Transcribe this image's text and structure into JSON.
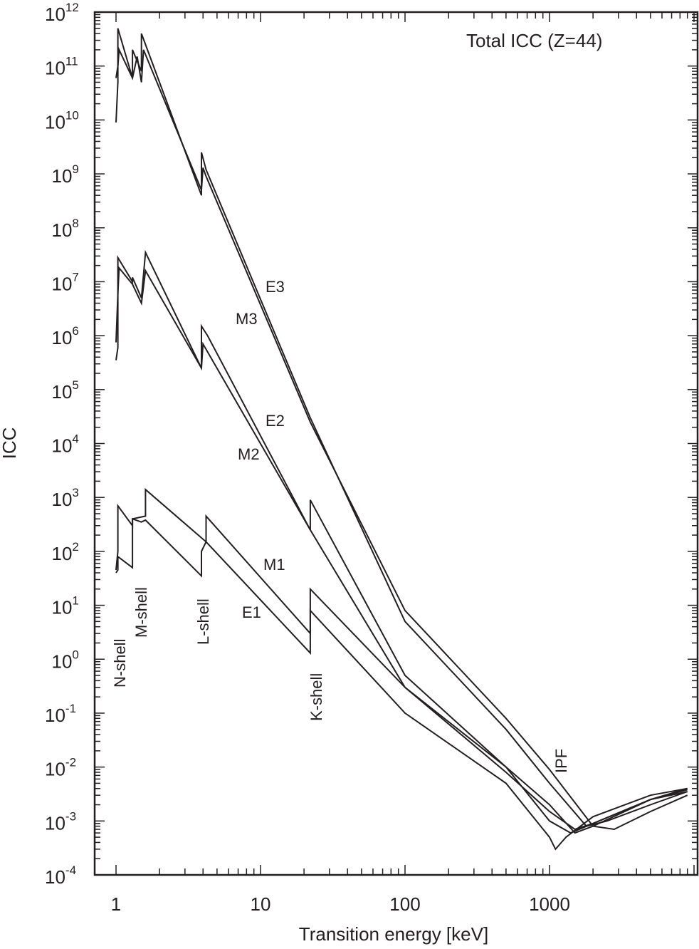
{
  "chart_data": {
    "type": "line",
    "title": "Total ICC (Z=44)",
    "xlabel": "Transition energy [keV]",
    "ylabel": "ICC",
    "xscale": "log",
    "yscale": "log",
    "xlim": [
      0.85,
      10500
    ],
    "ylim": [
      0.0001,
      1000000000000.0
    ],
    "grid": false,
    "legend": "none (curves labeled inline)",
    "x_ticks": [
      "1",
      "10",
      "100",
      "1000"
    ],
    "y_ticks": [
      "10^12",
      "10^11",
      "10^10",
      "10^9",
      "10^8",
      "10^7",
      "10^6",
      "10^5",
      "10^4",
      "10^3",
      "10^2",
      "10^1",
      "10^0",
      "10^-1",
      "10^-2",
      "10^-3",
      "10^-4"
    ],
    "annotations": [
      {
        "text": "N-shell",
        "x": 1.0,
        "orientation": "vertical"
      },
      {
        "text": "M-shell",
        "x": 1.35,
        "orientation": "vertical"
      },
      {
        "text": "L-shell",
        "x": 3.9,
        "orientation": "vertical"
      },
      {
        "text": "K-shell",
        "x": 22.1,
        "orientation": "vertical"
      },
      {
        "text": "IPF",
        "x": 1100,
        "orientation": "vertical"
      },
      {
        "text": "E1",
        "x": 9.5,
        "y": 10
      },
      {
        "text": "M1",
        "x": 10,
        "y": 60
      },
      {
        "text": "E2",
        "x": 10,
        "y": 30000
      },
      {
        "text": "M2",
        "x": 8,
        "y": 10000
      },
      {
        "text": "E3",
        "x": 10,
        "y": 7000000
      },
      {
        "text": "M3",
        "x": 8,
        "y": 2000000
      }
    ],
    "series": [
      {
        "name": "E1",
        "x": [
          1.0,
          1.03,
          1.03,
          1.3,
          1.3,
          1.5,
          1.6,
          3.9,
          3.9,
          4.2,
          22.1,
          22.1,
          100,
          500,
          1000,
          1100,
          1300,
          2000,
          5000,
          9000
        ],
        "y": [
          40,
          45,
          80,
          50,
          400,
          350,
          380,
          35,
          100,
          150,
          1.3,
          8,
          0.1,
          0.005,
          0.0005,
          0.0003,
          0.0005,
          0.0012,
          0.003,
          0.004
        ]
      },
      {
        "name": "M1",
        "x": [
          1.0,
          1.03,
          1.03,
          1.3,
          1.3,
          1.6,
          1.6,
          4.2,
          4.2,
          22.1,
          22.1,
          100,
          500,
          1000,
          1400,
          2000,
          5000,
          9000
        ],
        "y": [
          45,
          100,
          700,
          300,
          400,
          450,
          1400,
          150,
          450,
          3,
          20,
          0.3,
          0.01,
          0.001,
          0.0006,
          0.0009,
          0.0025,
          0.0035
        ]
      },
      {
        "name": "E2",
        "x": [
          1.0,
          1.03,
          1.03,
          1.3,
          1.3,
          1.5,
          1.6,
          3.9,
          3.9,
          4.3,
          22.1,
          22.1,
          100,
          500,
          1000,
          1500,
          2000,
          5000,
          9000
        ],
        "y": [
          350000,
          600000,
          28000000,
          10000000,
          12000000,
          5000000,
          35000000,
          250000,
          1500000,
          1000000,
          250,
          900,
          0.5,
          0.01,
          0.002,
          0.0006,
          0.0008,
          0.0025,
          0.004
        ]
      },
      {
        "name": "M2",
        "x": [
          1.0,
          1.03,
          1.05,
          1.3,
          1.5,
          1.6,
          3.9,
          4.0,
          4.3,
          22.1,
          100,
          500,
          1000,
          1500,
          2000,
          5000,
          9000
        ],
        "y": [
          750000,
          6000000,
          18000000,
          9000000,
          4000000,
          16000000,
          250000,
          700000,
          500000,
          250,
          0.3,
          0.008,
          0.0015,
          0.0007,
          0.0009,
          0.0025,
          0.0038
        ]
      },
      {
        "name": "E3",
        "x": [
          1.0,
          1.03,
          1.03,
          1.3,
          1.3,
          1.5,
          1.5,
          3.9,
          3.9,
          4.2,
          22.1,
          100,
          500,
          1000,
          1800,
          2500,
          5000,
          9000
        ],
        "y": [
          9000000000,
          50000000000,
          500000000000,
          60000000000,
          200000000000,
          80000000000,
          400000000000,
          400000000,
          2500000000,
          1200000000,
          30000,
          5,
          0.05,
          0.005,
          0.0008,
          0.001,
          0.002,
          0.0035
        ]
      },
      {
        "name": "M3",
        "x": [
          1.0,
          1.03,
          1.05,
          1.3,
          1.4,
          1.5,
          1.55,
          3.9,
          4.0,
          4.2,
          22.1,
          100,
          500,
          1000,
          2000,
          2800,
          5000,
          9000
        ],
        "y": [
          60000000000,
          100000000000,
          200000000000,
          60000000000,
          150000000000,
          50000000000,
          200000000000,
          500000000,
          1300000000,
          900000000,
          25000,
          8,
          0.08,
          0.009,
          0.0008,
          0.0007,
          0.0015,
          0.003
        ]
      }
    ]
  }
}
